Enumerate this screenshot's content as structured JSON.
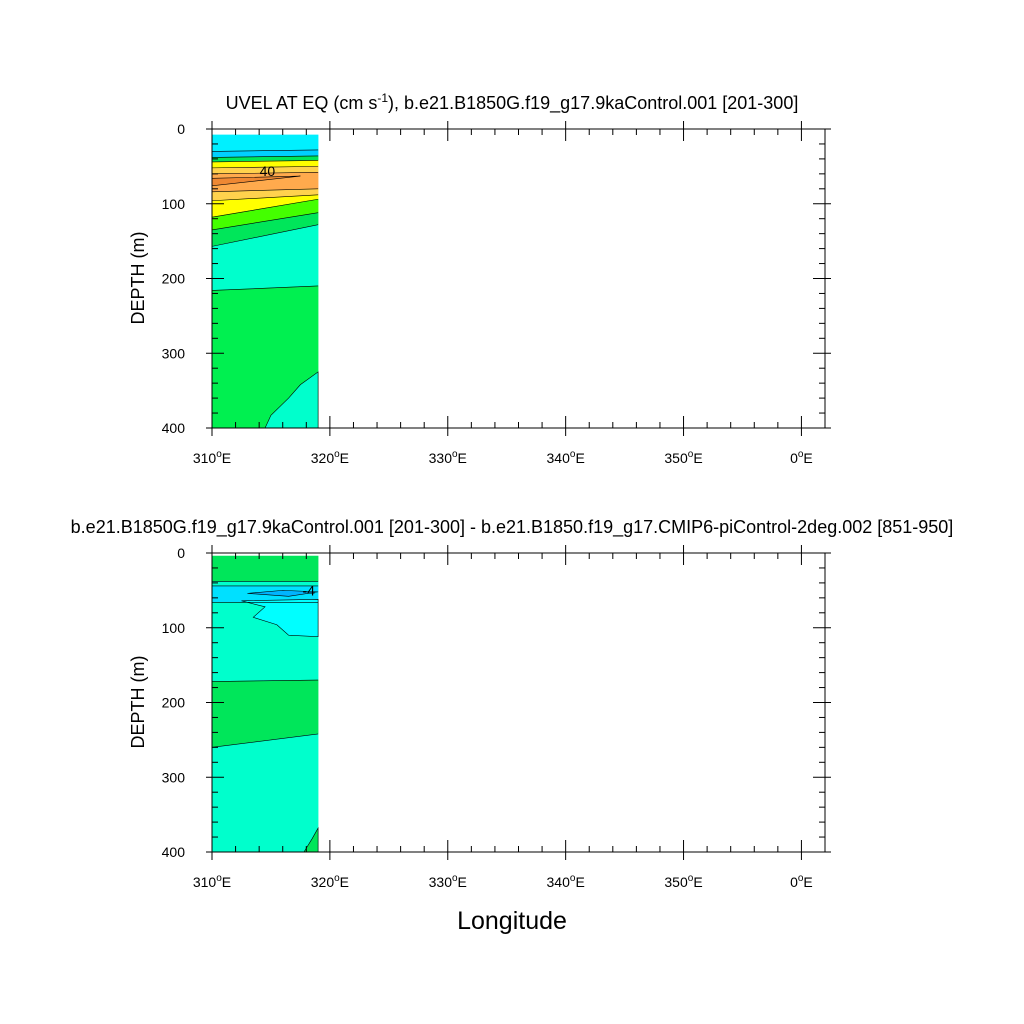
{
  "chart_data": [
    {
      "type": "heatmap",
      "title_main": "UVEL AT EQ (cm s",
      "title_sup": "-1",
      "title_rest": "), b.e21.B1850G.f19_g17.9kaControl.001 [201-300]",
      "ylabel": "DEPTH (m)",
      "xlabel": "",
      "xlim": [
        310,
        362
      ],
      "ylim": [
        0,
        400
      ],
      "x_ticks": [
        {
          "value": 310,
          "num": "310",
          "unit": "E"
        },
        {
          "value": 320,
          "num": "320",
          "unit": "E"
        },
        {
          "value": 330,
          "num": "330",
          "unit": "E"
        },
        {
          "value": 340,
          "num": "340",
          "unit": "E"
        },
        {
          "value": 350,
          "num": "350",
          "unit": "E"
        },
        {
          "value": 360,
          "num": "0",
          "unit": "E"
        }
      ],
      "y_ticks": [
        "0",
        "100",
        "200",
        "300",
        "400"
      ],
      "data_x_range": [
        310,
        319
      ],
      "data_depth_top": 8,
      "contour_labels": [
        {
          "text": "40",
          "x": 314.7,
          "depth": 56
        }
      ],
      "bands": [
        {
          "color": "#00f0ff",
          "top": [
            8,
            8
          ],
          "bottom": [
            30,
            28
          ]
        },
        {
          "color": "#00d0ff",
          "top": [
            30,
            28
          ],
          "bottom": [
            38,
            36
          ]
        },
        {
          "color": "#00e65a",
          "top": [
            38,
            36
          ],
          "bottom": [
            44,
            42
          ]
        },
        {
          "color": "#ffff00",
          "top": [
            44,
            42
          ],
          "bottom": [
            52,
            50
          ]
        },
        {
          "color": "#ffd24d",
          "top": [
            52,
            50
          ],
          "bottom": [
            60,
            58
          ]
        },
        {
          "color": "#ffaa4d",
          "top": [
            60,
            58
          ],
          "bottom": [
            84,
            80
          ]
        },
        {
          "color": "#ffd24d",
          "top": [
            84,
            80
          ],
          "bottom": [
            96,
            88
          ]
        },
        {
          "color": "#ffff00",
          "top": [
            96,
            88
          ],
          "bottom": [
            118,
            94
          ]
        },
        {
          "color": "#44ff00",
          "top": [
            118,
            94
          ],
          "bottom": [
            135,
            112
          ]
        },
        {
          "color": "#00e65a",
          "top": [
            135,
            112
          ],
          "bottom": [
            157,
            128
          ]
        },
        {
          "color": "#00ffcc",
          "top": [
            157,
            128
          ],
          "bottom": [
            216,
            210
          ]
        },
        {
          "color": "#00f050",
          "top": [
            216,
            210
          ],
          "bottom": [
            400,
            400
          ]
        }
      ],
      "blobs": [
        {
          "color": "#ee8833",
          "points": [
            [
              310,
              66
            ],
            [
              317.5,
              63
            ],
            [
              310,
              76
            ]
          ]
        },
        {
          "color": "#00ffcc",
          "points": [
            [
              314.5,
              400
            ],
            [
              315,
              383
            ],
            [
              316.5,
              360
            ],
            [
              317.5,
              342
            ],
            [
              319,
              325
            ],
            [
              319,
              400
            ]
          ]
        }
      ]
    },
    {
      "type": "heatmap",
      "title_main": "b.e21.B1850G.f19_g17.9kaControl.001 [201-300] - b.e21.B1850.f19_g17.CMIP6-piControl-2deg.002 [851-950]",
      "title_sup": "",
      "title_rest": "",
      "ylabel": "DEPTH (m)",
      "xlabel": "Longitude",
      "xlim": [
        310,
        362
      ],
      "ylim": [
        0,
        400
      ],
      "x_ticks": [
        {
          "value": 310,
          "num": "310",
          "unit": "E"
        },
        {
          "value": 320,
          "num": "320",
          "unit": "E"
        },
        {
          "value": 330,
          "num": "330",
          "unit": "E"
        },
        {
          "value": 340,
          "num": "340",
          "unit": "E"
        },
        {
          "value": 350,
          "num": "350",
          "unit": "E"
        },
        {
          "value": 360,
          "num": "0",
          "unit": "E"
        }
      ],
      "y_ticks": [
        "0",
        "100",
        "200",
        "300",
        "400"
      ],
      "data_x_range": [
        310,
        319
      ],
      "data_depth_top": 4,
      "contour_labels": [
        {
          "text": "-4",
          "x": 318.2,
          "depth": 50
        }
      ],
      "bands": [
        {
          "color": "#00e65a",
          "top": [
            4,
            4
          ],
          "bottom": [
            38,
            38
          ]
        },
        {
          "color": "#00ffcc",
          "top": [
            38,
            38
          ],
          "bottom": [
            44,
            44
          ]
        },
        {
          "color": "#00e0ff",
          "top": [
            44,
            44
          ],
          "bottom": [
            66,
            66
          ]
        },
        {
          "color": "#00ffcc",
          "top": [
            66,
            66
          ],
          "bottom": [
            172,
            170
          ]
        },
        {
          "color": "#00e65a",
          "top": [
            172,
            170
          ],
          "bottom": [
            260,
            242
          ]
        },
        {
          "color": "#00ffcc",
          "top": [
            260,
            242
          ],
          "bottom": [
            400,
            400
          ]
        }
      ],
      "blobs": [
        {
          "color": "#00ffff",
          "points": [
            [
              312.5,
              64
            ],
            [
              319,
              62
            ],
            [
              319,
              112
            ],
            [
              316.5,
              110
            ],
            [
              315.5,
              96
            ],
            [
              313.5,
              86
            ],
            [
              314.5,
              72
            ]
          ]
        },
        {
          "color": "#00b4ff",
          "points": [
            [
              313,
              54
            ],
            [
              316,
              50
            ],
            [
              319,
              52
            ],
            [
              316.5,
              58
            ]
          ]
        },
        {
          "color": "#00e65a",
          "points": [
            [
              317.8,
              400
            ],
            [
              318.5,
              382
            ],
            [
              319,
              368
            ],
            [
              319,
              400
            ]
          ]
        }
      ]
    }
  ]
}
